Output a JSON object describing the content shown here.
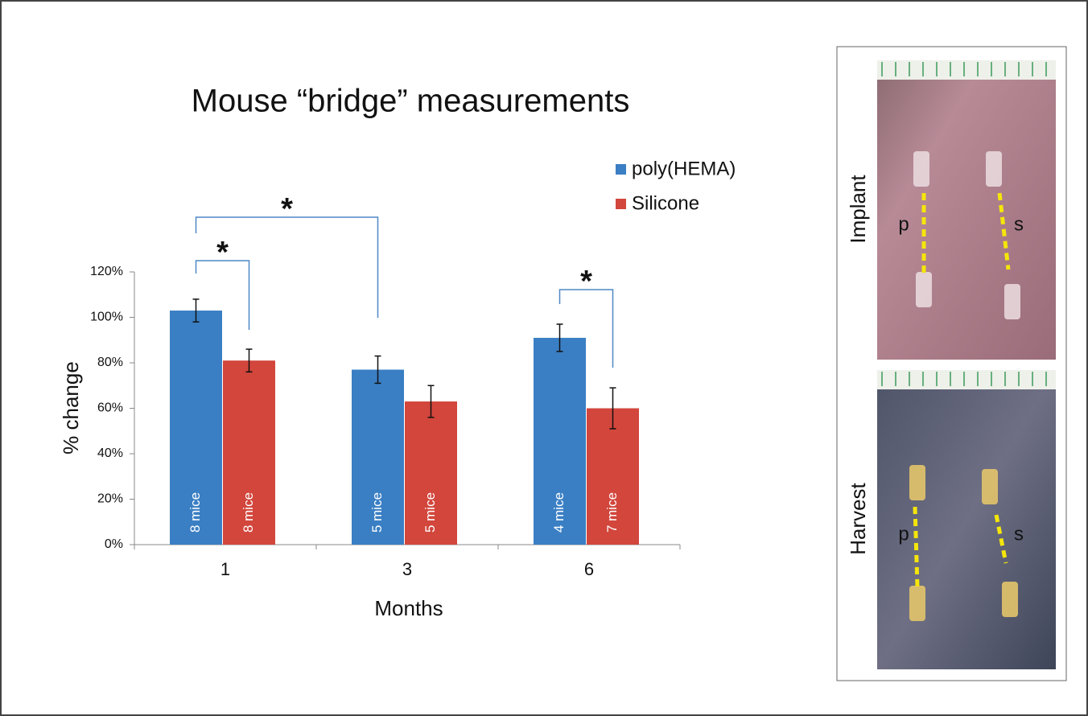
{
  "chart_data": {
    "type": "bar",
    "title": "Mouse “bridge” measurements",
    "x_label": "Months",
    "y_label": "% change",
    "categories": [
      "1",
      "3",
      "6"
    ],
    "series": [
      {
        "name": "poly(HEMA)",
        "color": "#3a7fc4",
        "values": [
          103,
          77,
          91
        ],
        "errors": [
          5,
          6,
          6
        ],
        "bar_labels": [
          "8 mice",
          "5 mice",
          "4 mice"
        ]
      },
      {
        "name": "Silicone",
        "color": "#d2463c",
        "values": [
          81,
          63,
          60
        ],
        "errors": [
          5,
          7,
          9
        ],
        "bar_labels": [
          "8 mice",
          "5 mice",
          "7 mice"
        ]
      }
    ],
    "ylim": [
      0,
      120
    ],
    "yticks": [
      {
        "value": 0,
        "label": "0%"
      },
      {
        "value": 20,
        "label": "20%"
      },
      {
        "value": 40,
        "label": "40%"
      },
      {
        "value": 60,
        "label": "60%"
      },
      {
        "value": 80,
        "label": "80%"
      },
      {
        "value": 100,
        "label": "100%"
      },
      {
        "value": 120,
        "label": "120%"
      }
    ],
    "annotations": [
      {
        "text": "*"
      },
      {
        "text": "*"
      },
      {
        "text": "*"
      }
    ]
  },
  "photos": [
    {
      "title": "Implant",
      "labels": [
        "p",
        "s"
      ]
    },
    {
      "title": "Harvest",
      "labels": [
        "p",
        "s"
      ]
    }
  ]
}
